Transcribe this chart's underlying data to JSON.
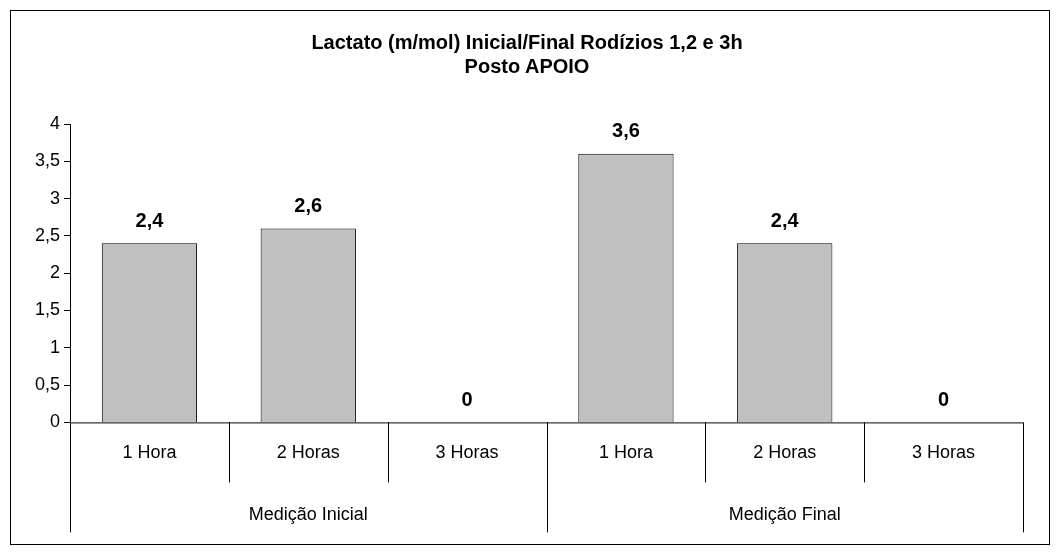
{
  "chart_data": {
    "type": "bar",
    "title": [
      "Lactato (m/mol) Inicial/Final Rodízios 1,2 e 3h",
      "Posto APOIO"
    ],
    "categories": [
      "1 Hora",
      "2 Horas",
      "3 Horas",
      "1 Hora",
      "2 Horas",
      "3 Horas"
    ],
    "values": [
      2.4,
      2.6,
      0,
      3.6,
      2.4,
      0
    ],
    "value_labels": [
      "2,4",
      "2,6",
      "0",
      "3,6",
      "2,4",
      "0"
    ],
    "color": "#c0c0c0",
    "ylim": [
      0,
      4
    ],
    "yticks": [
      0,
      {
        "value": 0.5,
        "label": "0,5"
      },
      1,
      {
        "value": 1.5,
        "label": "1,5"
      },
      2,
      {
        "value": 2.5,
        "label": "2,5"
      },
      3,
      {
        "value": 3.5,
        "label": "3,5"
      },
      4
    ],
    "annotations": [
      "Medição Inicial",
      "Medição Final"
    ],
    "grid": false,
    "legend": false
  }
}
